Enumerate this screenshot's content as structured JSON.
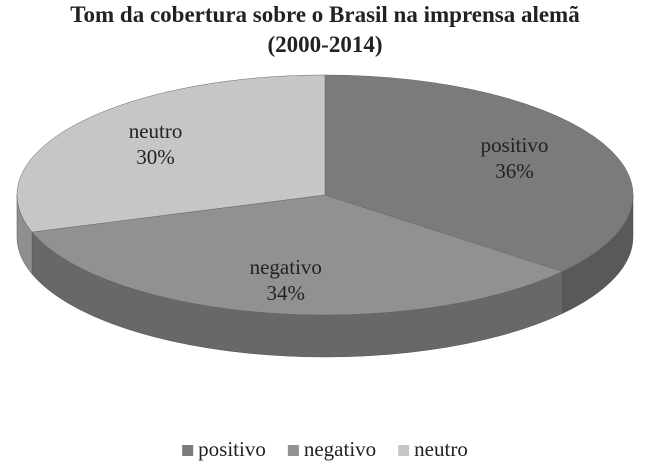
{
  "chart_data": {
    "type": "pie",
    "title": "Tom da cobertura sobre o Brasil na imprensa alemã  (2000-2014)",
    "categories": [
      "positivo",
      "negativo",
      "neutro"
    ],
    "values": [
      36,
      34,
      30
    ],
    "value_labels": [
      "36%",
      "34%",
      "30%"
    ],
    "colors": [
      "#7b7b7b",
      "#919191",
      "#c6c6c6"
    ],
    "legend": "bottom"
  }
}
